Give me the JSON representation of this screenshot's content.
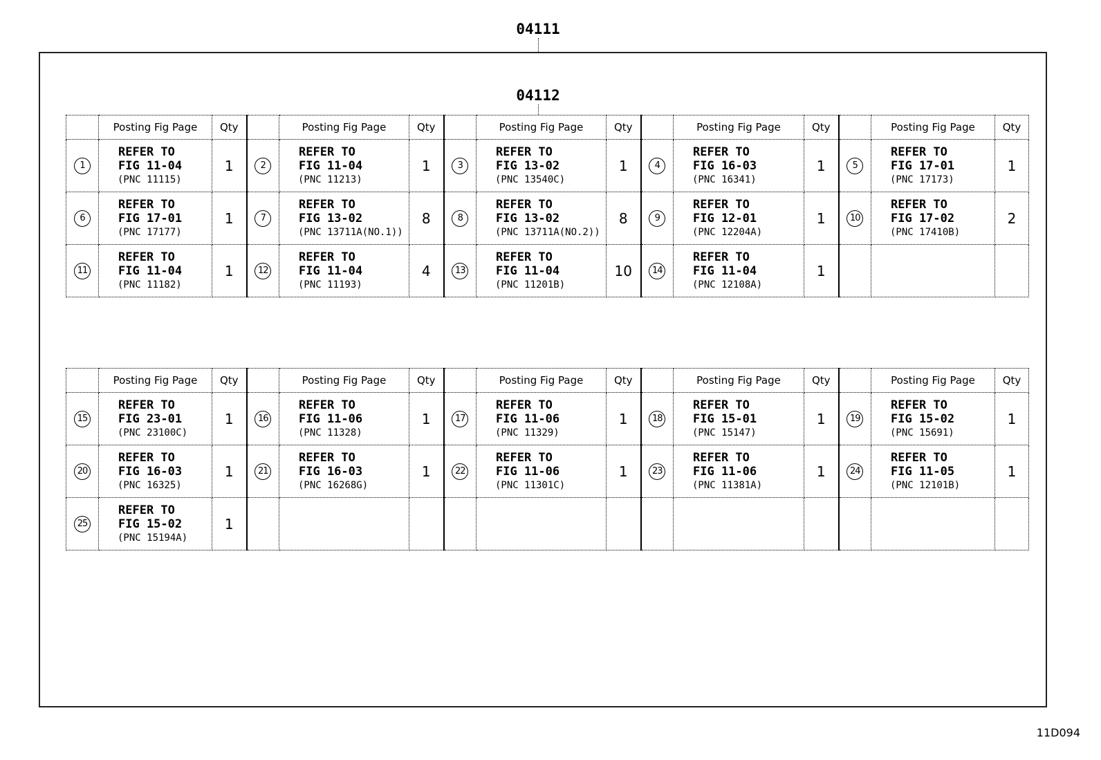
{
  "labels": {
    "top": "04111",
    "inner": "04112",
    "figure_code": "11D094"
  },
  "header": {
    "posting": "Posting Fig Page",
    "qty": "Qty"
  },
  "tables": [
    {
      "rows": [
        [
          {
            "num": "1",
            "ref": "REFER TO",
            "fig": "FIG 11-04",
            "pnc": "(PNC 11115)",
            "qty": "1"
          },
          {
            "num": "2",
            "ref": "REFER TO",
            "fig": "FIG 11-04",
            "pnc": "(PNC 11213)",
            "qty": "1"
          },
          {
            "num": "3",
            "ref": "REFER TO",
            "fig": "FIG 13-02",
            "pnc": "(PNC 13540C)",
            "qty": "1"
          },
          {
            "num": "4",
            "ref": "REFER TO",
            "fig": "FIG 16-03",
            "pnc": "(PNC 16341)",
            "qty": "1"
          },
          {
            "num": "5",
            "ref": "REFER TO",
            "fig": "FIG 17-01",
            "pnc": "(PNC 17173)",
            "qty": "1"
          }
        ],
        [
          {
            "num": "6",
            "ref": "REFER TO",
            "fig": "FIG 17-01",
            "pnc": "(PNC 17177)",
            "qty": "1"
          },
          {
            "num": "7",
            "ref": "REFER TO",
            "fig": "FIG 13-02",
            "pnc": "(PNC 13711A(NO.1))",
            "qty": "8"
          },
          {
            "num": "8",
            "ref": "REFER TO",
            "fig": "FIG 13-02",
            "pnc": "(PNC 13711A(NO.2))",
            "qty": "8"
          },
          {
            "num": "9",
            "ref": "REFER TO",
            "fig": "FIG 12-01",
            "pnc": "(PNC 12204A)",
            "qty": "1"
          },
          {
            "num": "10",
            "ref": "REFER TO",
            "fig": "FIG 17-02",
            "pnc": "(PNC 17410B)",
            "qty": "2"
          }
        ],
        [
          {
            "num": "11",
            "ref": "REFER TO",
            "fig": "FIG 11-04",
            "pnc": "(PNC 11182)",
            "qty": "1"
          },
          {
            "num": "12",
            "ref": "REFER TO",
            "fig": "FIG 11-04",
            "pnc": "(PNC 11193)",
            "qty": "4"
          },
          {
            "num": "13",
            "ref": "REFER TO",
            "fig": "FIG 11-04",
            "pnc": "(PNC 11201B)",
            "qty": "10"
          },
          {
            "num": "14",
            "ref": "REFER TO",
            "fig": "FIG 11-04",
            "pnc": "(PNC 12108A)",
            "qty": "1"
          },
          null
        ]
      ]
    },
    {
      "rows": [
        [
          {
            "num": "15",
            "ref": "REFER TO",
            "fig": "FIG 23-01",
            "pnc": "(PNC 23100C)",
            "qty": "1"
          },
          {
            "num": "16",
            "ref": "REFER TO",
            "fig": "FIG 11-06",
            "pnc": "(PNC 11328)",
            "qty": "1"
          },
          {
            "num": "17",
            "ref": "REFER TO",
            "fig": "FIG 11-06",
            "pnc": "(PNC 11329)",
            "qty": "1"
          },
          {
            "num": "18",
            "ref": "REFER TO",
            "fig": "FIG 15-01",
            "pnc": "(PNC 15147)",
            "qty": "1"
          },
          {
            "num": "19",
            "ref": "REFER TO",
            "fig": "FIG 15-02",
            "pnc": "(PNC 15691)",
            "qty": "1"
          }
        ],
        [
          {
            "num": "20",
            "ref": "REFER TO",
            "fig": "FIG 16-03",
            "pnc": "(PNC 16325)",
            "qty": "1"
          },
          {
            "num": "21",
            "ref": "REFER TO",
            "fig": "FIG 16-03",
            "pnc": "(PNC 16268G)",
            "qty": "1"
          },
          {
            "num": "22",
            "ref": "REFER TO",
            "fig": "FIG 11-06",
            "pnc": "(PNC 11301C)",
            "qty": "1"
          },
          {
            "num": "23",
            "ref": "REFER TO",
            "fig": "FIG 11-06",
            "pnc": "(PNC 11381A)",
            "qty": "1"
          },
          {
            "num": "24",
            "ref": "REFER TO",
            "fig": "FIG 11-05",
            "pnc": "(PNC 12101B)",
            "qty": "1"
          }
        ],
        [
          {
            "num": "25",
            "ref": "REFER TO",
            "fig": "FIG 15-02",
            "pnc": "(PNC 15194A)",
            "qty": "1"
          },
          null,
          null,
          null,
          null
        ]
      ]
    }
  ]
}
